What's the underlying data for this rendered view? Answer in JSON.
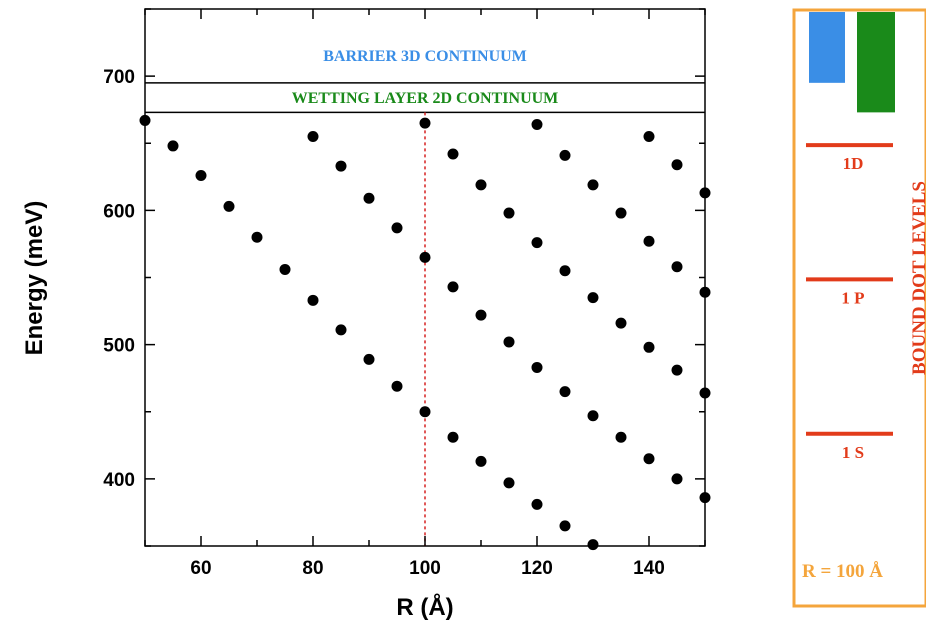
{
  "chart_data": {
    "type": "scatter",
    "xlabel": "R (Å)",
    "ylabel": "Energy (meV)",
    "xlim": [
      50,
      150
    ],
    "ylim": [
      350,
      750
    ],
    "xticks": [
      60,
      80,
      100,
      120,
      140
    ],
    "yticks": [
      400,
      500,
      600,
      700
    ],
    "grid": false,
    "reference_line": {
      "x": 100,
      "color": "#d62020",
      "style": "dotted"
    },
    "bands": [
      {
        "label": "BARRIER 3D CONTINUUM",
        "y_bottom": 695,
        "color": "#3a8ee6"
      },
      {
        "label": "WETTING LAYER 2D CONTINUUM",
        "y_bottom": 673,
        "color": "#1a8a1a"
      }
    ],
    "points": [
      {
        "x": 50,
        "y": 667
      },
      {
        "x": 55,
        "y": 648
      },
      {
        "x": 60,
        "y": 626
      },
      {
        "x": 65,
        "y": 603
      },
      {
        "x": 70,
        "y": 580
      },
      {
        "x": 75,
        "y": 556
      },
      {
        "x": 80,
        "y": 533
      },
      {
        "x": 85,
        "y": 511
      },
      {
        "x": 90,
        "y": 489
      },
      {
        "x": 95,
        "y": 469
      },
      {
        "x": 100,
        "y": 450
      },
      {
        "x": 105,
        "y": 431
      },
      {
        "x": 110,
        "y": 413
      },
      {
        "x": 115,
        "y": 397
      },
      {
        "x": 120,
        "y": 381
      },
      {
        "x": 125,
        "y": 365
      },
      {
        "x": 130,
        "y": 351
      },
      {
        "x": 80,
        "y": 655
      },
      {
        "x": 85,
        "y": 633
      },
      {
        "x": 90,
        "y": 609
      },
      {
        "x": 95,
        "y": 587
      },
      {
        "x": 100,
        "y": 565
      },
      {
        "x": 105,
        "y": 543
      },
      {
        "x": 110,
        "y": 522
      },
      {
        "x": 115,
        "y": 502
      },
      {
        "x": 120,
        "y": 483
      },
      {
        "x": 125,
        "y": 465
      },
      {
        "x": 130,
        "y": 447
      },
      {
        "x": 135,
        "y": 431
      },
      {
        "x": 140,
        "y": 415
      },
      {
        "x": 145,
        "y": 400
      },
      {
        "x": 150,
        "y": 386
      },
      {
        "x": 100,
        "y": 665
      },
      {
        "x": 105,
        "y": 642
      },
      {
        "x": 110,
        "y": 619
      },
      {
        "x": 115,
        "y": 598
      },
      {
        "x": 120,
        "y": 576
      },
      {
        "x": 125,
        "y": 555
      },
      {
        "x": 130,
        "y": 535
      },
      {
        "x": 135,
        "y": 516
      },
      {
        "x": 140,
        "y": 498
      },
      {
        "x": 145,
        "y": 481
      },
      {
        "x": 150,
        "y": 464
      },
      {
        "x": 120,
        "y": 664
      },
      {
        "x": 125,
        "y": 641
      },
      {
        "x": 130,
        "y": 619
      },
      {
        "x": 135,
        "y": 598
      },
      {
        "x": 140,
        "y": 577
      },
      {
        "x": 145,
        "y": 558
      },
      {
        "x": 150,
        "y": 539
      },
      {
        "x": 140,
        "y": 655
      },
      {
        "x": 145,
        "y": 634
      },
      {
        "x": 150,
        "y": 613
      }
    ]
  },
  "inset": {
    "caption": "R = 100 Å",
    "side_label": "BOUND DOT LEVELS",
    "frame_color": "#f4a53c",
    "level_color": "#e23b1a",
    "bars": [
      {
        "name": "barrier",
        "color": "#3a8ee6",
        "energy_bottom": 695
      },
      {
        "name": "wetting-layer",
        "color": "#1a8a1a",
        "energy_bottom": 673
      }
    ],
    "levels": [
      {
        "label": "1D",
        "energy": 665
      },
      {
        "label": "1 P",
        "energy": 565
      },
      {
        "label": "1 S",
        "energy": 450
      }
    ]
  }
}
